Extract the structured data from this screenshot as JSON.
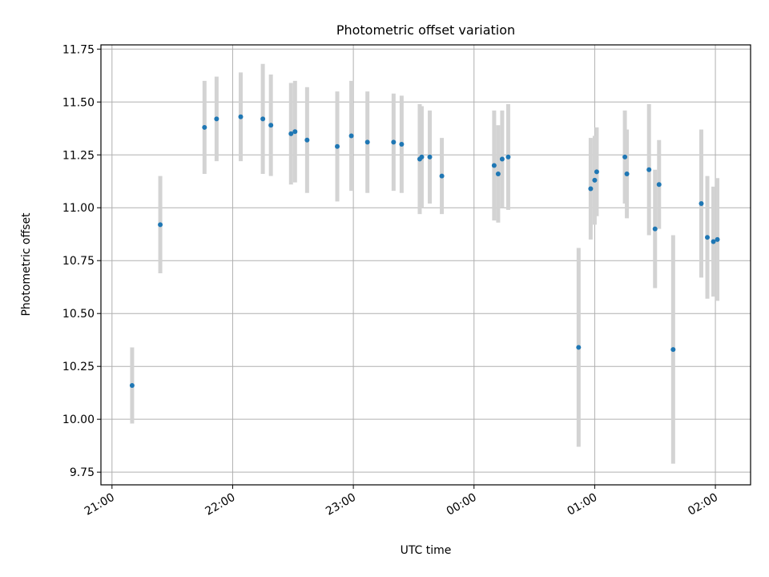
{
  "chart_data": {
    "type": "scatter",
    "title": "Photometric offset variation",
    "xlabel": "UTC time",
    "ylabel": "Photometric offset",
    "ylim": [
      9.69,
      11.77
    ],
    "xlim_minutes": [
      -5.5,
      317.5
    ],
    "x_ticks": [
      {
        "minutes": 0,
        "label": "21:00"
      },
      {
        "minutes": 60,
        "label": "22:00"
      },
      {
        "minutes": 120,
        "label": "23:00"
      },
      {
        "minutes": 180,
        "label": "00:00"
      },
      {
        "minutes": 240,
        "label": "01:00"
      },
      {
        "minutes": 300,
        "label": "02:00"
      }
    ],
    "y_ticks": [
      "9.75",
      "10.00",
      "10.25",
      "10.50",
      "10.75",
      "11.00",
      "11.25",
      "11.50",
      "11.75"
    ],
    "grid": true,
    "legend": "none",
    "colors": {
      "points": "#1f77b4",
      "errorbars": "#d3d3d3",
      "grid": "#b0b0b0"
    },
    "points": [
      {
        "time": "21:10",
        "y": 10.16,
        "err": 0.18
      },
      {
        "time": "21:24",
        "y": 10.92,
        "err": 0.23
      },
      {
        "time": "21:46",
        "y": 11.38,
        "err": 0.22
      },
      {
        "time": "21:52",
        "y": 11.42,
        "err": 0.2
      },
      {
        "time": "22:04",
        "y": 11.43,
        "err": 0.21
      },
      {
        "time": "22:15",
        "y": 11.42,
        "err": 0.26
      },
      {
        "time": "22:19",
        "y": 11.39,
        "err": 0.24
      },
      {
        "time": "22:29",
        "y": 11.35,
        "err": 0.24
      },
      {
        "time": "22:31",
        "y": 11.36,
        "err": 0.24
      },
      {
        "time": "22:37",
        "y": 11.32,
        "err": 0.25
      },
      {
        "time": "22:52",
        "y": 11.29,
        "err": 0.26
      },
      {
        "time": "22:59",
        "y": 11.34,
        "err": 0.26
      },
      {
        "time": "23:07",
        "y": 11.31,
        "err": 0.24
      },
      {
        "time": "23:20",
        "y": 11.31,
        "err": 0.23
      },
      {
        "time": "23:24",
        "y": 11.3,
        "err": 0.23
      },
      {
        "time": "23:33",
        "y": 11.23,
        "err": 0.26
      },
      {
        "time": "23:34",
        "y": 11.24,
        "err": 0.24
      },
      {
        "time": "23:38",
        "y": 11.24,
        "err": 0.22
      },
      {
        "time": "23:44",
        "y": 11.15,
        "err": 0.18
      },
      {
        "time": "00:10",
        "y": 11.2,
        "err": 0.26
      },
      {
        "time": "00:12",
        "y": 11.16,
        "err": 0.23
      },
      {
        "time": "00:14",
        "y": 11.23,
        "err": 0.23
      },
      {
        "time": "00:17",
        "y": 11.24,
        "err": 0.25
      },
      {
        "time": "00:52",
        "y": 10.34,
        "err": 0.47
      },
      {
        "time": "00:58",
        "y": 11.09,
        "err": 0.24
      },
      {
        "time": "01:00",
        "y": 11.13,
        "err": 0.21
      },
      {
        "time": "01:01",
        "y": 11.17,
        "err": 0.21
      },
      {
        "time": "01:15",
        "y": 11.24,
        "err": 0.22
      },
      {
        "time": "01:16",
        "y": 11.16,
        "err": 0.21
      },
      {
        "time": "01:27",
        "y": 11.18,
        "err": 0.31
      },
      {
        "time": "01:30",
        "y": 10.9,
        "err": 0.28
      },
      {
        "time": "01:32",
        "y": 11.11,
        "err": 0.21
      },
      {
        "time": "01:39",
        "y": 10.33,
        "err": 0.54
      },
      {
        "time": "01:53",
        "y": 11.02,
        "err": 0.35
      },
      {
        "time": "01:56",
        "y": 10.86,
        "err": 0.29
      },
      {
        "time": "01:59",
        "y": 10.84,
        "err": 0.26
      },
      {
        "time": "02:01",
        "y": 10.85,
        "err": 0.29
      }
    ]
  }
}
